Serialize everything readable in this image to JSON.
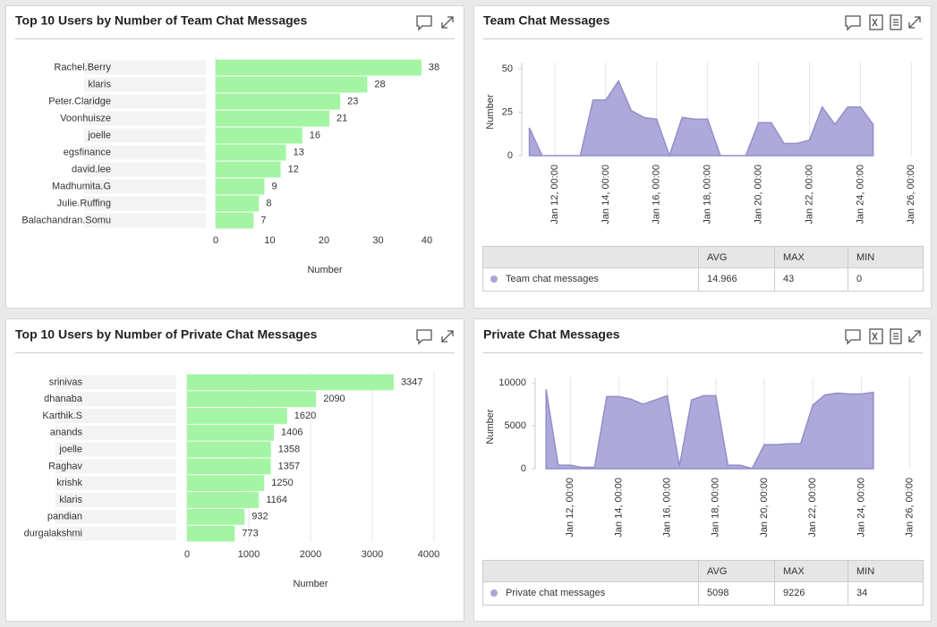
{
  "chart_data": [
    {
      "type": "hbar",
      "title": "Top 10 Users by Number of Team Chat Messages",
      "categories": [
        "Rachel.Berry",
        "klaris",
        "Peter.Claridge",
        "Voonhuisze",
        "joelle",
        "egsfinance",
        "david.lee",
        "Madhumita.G",
        "Julie.Ruffing",
        "Balachandran.Somu"
      ],
      "values": [
        38,
        28,
        23,
        21,
        16,
        13,
        12,
        9,
        8,
        7
      ],
      "color": "#a3f5a3",
      "xlim": [
        0,
        40
      ],
      "xticks": [
        0,
        10,
        20,
        30,
        40
      ],
      "xlabel": "Number"
    },
    {
      "type": "area",
      "title": "Team Chat Messages",
      "x": [
        11,
        11.5,
        12,
        12.5,
        13,
        13.5,
        14,
        14.5,
        15,
        15.5,
        16,
        16.5,
        17,
        17.5,
        18,
        18.5,
        19,
        19.5,
        20,
        20.5,
        21,
        21.5,
        22,
        22.5,
        23,
        23.5,
        24,
        24.5
      ],
      "series": [
        {
          "name": "Team chat messages",
          "color": "#a9a4d8",
          "values": [
            16,
            0,
            0,
            0,
            0,
            32,
            32,
            43,
            26,
            22,
            21,
            0,
            22,
            21,
            21,
            0,
            0,
            0,
            19,
            19,
            7,
            7,
            9,
            28,
            18,
            28,
            28,
            18
          ]
        }
      ],
      "xlim": [
        10.7,
        26.2
      ],
      "xticks": [
        {
          "value": 12,
          "label": "Jan 12, 00:00"
        },
        {
          "value": 14,
          "label": "Jan 14, 00:00"
        },
        {
          "value": 16,
          "label": "Jan 16, 00:00"
        },
        {
          "value": 18,
          "label": "Jan 18, 00:00"
        },
        {
          "value": 20,
          "label": "Jan 20, 00:00"
        },
        {
          "value": 22,
          "label": "Jan 22, 00:00"
        },
        {
          "value": 24,
          "label": "Jan 24, 00:00"
        },
        {
          "value": 26,
          "label": "Jan 26, 00:00"
        }
      ],
      "ylim": [
        0,
        50
      ],
      "yticks": [
        0,
        25,
        50
      ],
      "ylabel": "Number",
      "grid": true,
      "summary": {
        "columns": [
          "AVG",
          "MAX",
          "MIN"
        ],
        "values": [
          14.966,
          43,
          0
        ]
      }
    },
    {
      "type": "hbar",
      "title": "Top 10 Users by Number of Private Chat Messages",
      "categories": [
        "srinivas",
        "dhanaba",
        "Karthik.S",
        "anands",
        "joelle",
        "Raghav",
        "krishk",
        "klaris",
        "pandian",
        "durgalakshmi"
      ],
      "values": [
        3347,
        2090,
        1620,
        1406,
        1358,
        1357,
        1250,
        1164,
        932,
        773
      ],
      "color": "#a3f5a3",
      "xlim": [
        0,
        4000
      ],
      "xticks": [
        0,
        1000,
        2000,
        3000,
        4000
      ],
      "xlabel": "Number",
      "grid": true
    },
    {
      "type": "area",
      "title": "Private Chat Messages",
      "x": [
        11,
        11.5,
        12,
        12.5,
        13,
        13.5,
        14,
        14.5,
        15,
        15.5,
        16,
        16.5,
        17,
        17.5,
        18,
        18.5,
        19,
        19.5,
        20,
        20.5,
        21,
        21.5,
        22,
        22.5,
        23,
        23.5,
        24,
        24.5
      ],
      "series": [
        {
          "name": "Private chat messages",
          "color": "#a9a4d8",
          "values": [
            9226,
            400,
            400,
            150,
            150,
            8400,
            8400,
            8100,
            7500,
            8000,
            8500,
            300,
            8000,
            8500,
            8500,
            400,
            400,
            34,
            2800,
            2800,
            2900,
            2900,
            7400,
            8600,
            8800,
            8700,
            8700,
            8900
          ]
        }
      ],
      "xlim": [
        10.55,
        26.2
      ],
      "xticks": [
        {
          "value": 12,
          "label": "Jan 12, 00:00"
        },
        {
          "value": 14,
          "label": "Jan 14, 00:00"
        },
        {
          "value": 16,
          "label": "Jan 16, 00:00"
        },
        {
          "value": 18,
          "label": "Jan 18, 00:00"
        },
        {
          "value": 20,
          "label": "Jan 20, 00:00"
        },
        {
          "value": 22,
          "label": "Jan 22, 00:00"
        },
        {
          "value": 24,
          "label": "Jan 24, 00:00"
        },
        {
          "value": 26,
          "label": "Jan 26, 00:00"
        }
      ],
      "ylim": [
        0,
        10000
      ],
      "yticks": [
        0,
        5000,
        10000
      ],
      "ylabel": "Number",
      "grid": true,
      "summary": {
        "columns": [
          "AVG",
          "MAX",
          "MIN"
        ],
        "values": [
          5098,
          9226,
          34
        ]
      }
    }
  ]
}
